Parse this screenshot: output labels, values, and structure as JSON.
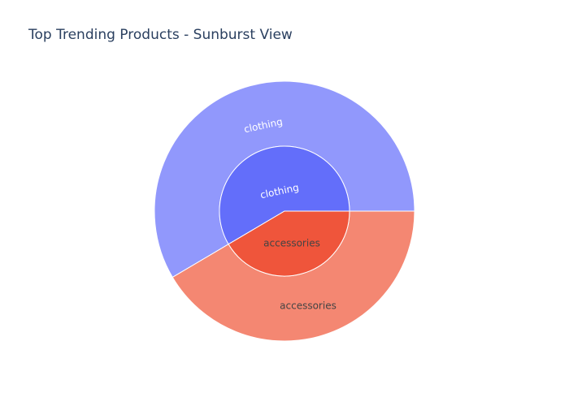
{
  "chart_data": {
    "type": "sunburst",
    "title": "Top Trending Products - Sunburst View",
    "rings": [
      {
        "level": "inner",
        "segments": [
          {
            "label": "clothing",
            "value": 58.5,
            "color": "#636efa",
            "text_color": "#ffffff"
          },
          {
            "label": "accessories",
            "value": 41.5,
            "color": "#ef553b",
            "text_color": "#444444"
          }
        ]
      },
      {
        "level": "outer",
        "segments": [
          {
            "label": "clothing",
            "parent": "clothing",
            "value": 58.5,
            "color": "#9198fc",
            "text_color": "#ffffff"
          },
          {
            "label": "accessories",
            "parent": "accessories",
            "value": 41.5,
            "color": "#f48772",
            "text_color": "#444444"
          }
        ]
      }
    ]
  }
}
